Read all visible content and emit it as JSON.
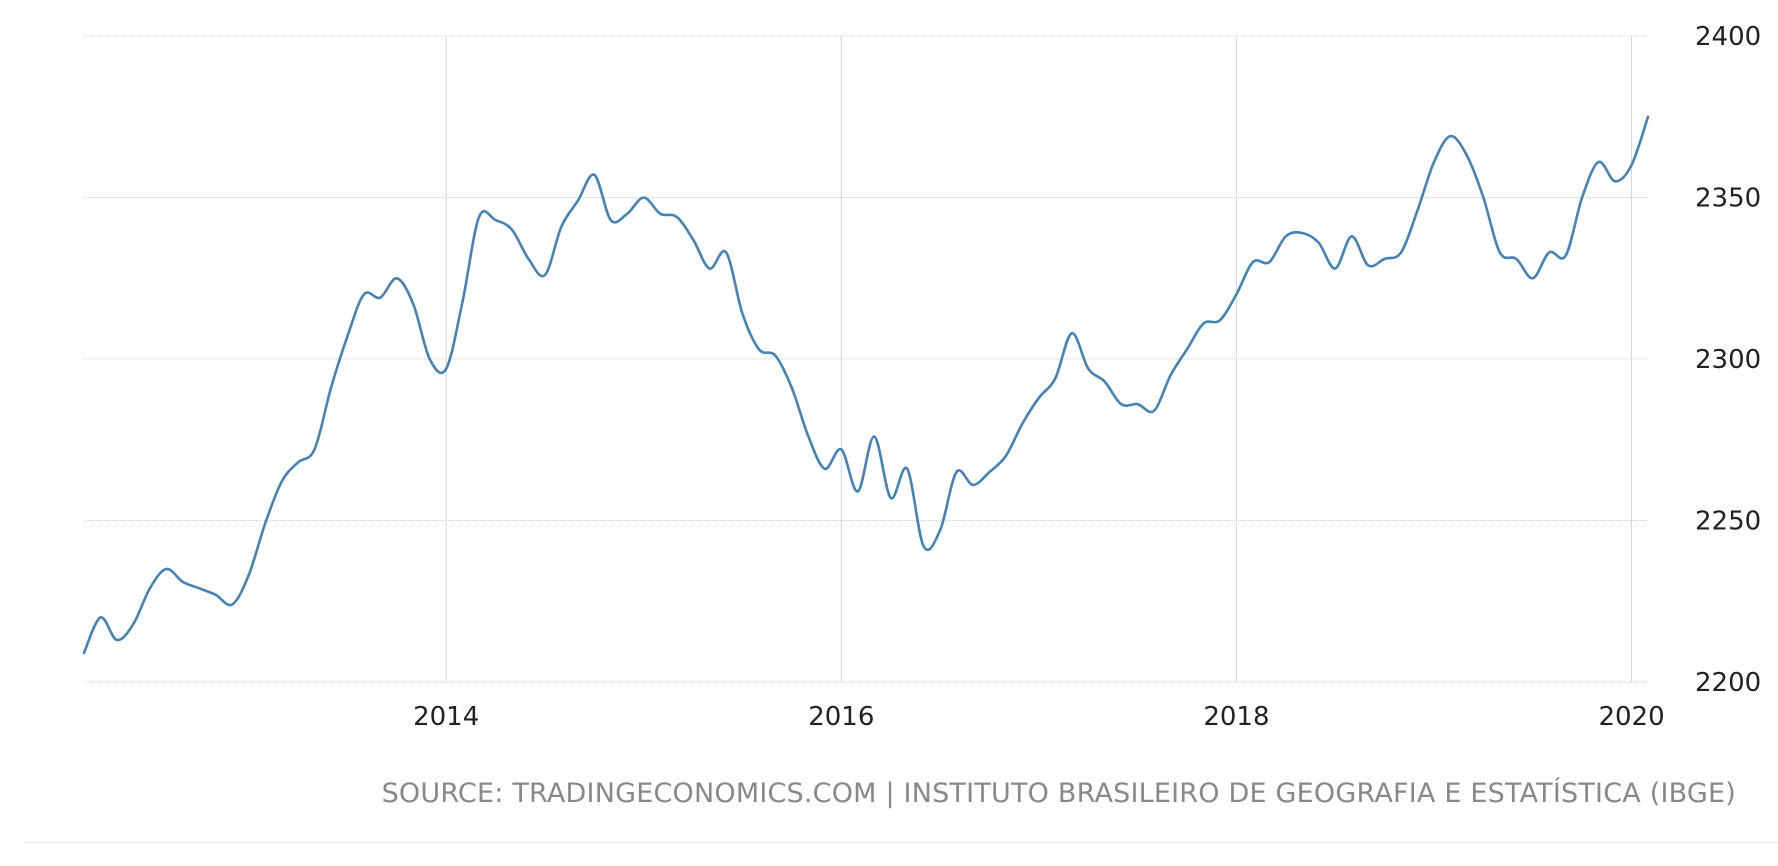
{
  "source": "SOURCE: TRADINGECONOMICS.COM | INSTITUTO BRASILEIRO DE GEOGRAFIA E ESTATÍSTICA (IBGE)",
  "colors": {
    "line": "#4682b4",
    "grid": "#d0d0d0",
    "text": "#222222",
    "source": "#888888"
  },
  "chart_data": {
    "type": "line",
    "title": "",
    "xlabel": "",
    "ylabel": "",
    "xlim": [
      "2012-03",
      "2020-02"
    ],
    "ylim": [
      2200,
      2400
    ],
    "grid": true,
    "legend": "none",
    "y_ticks": [
      "2200",
      "2250",
      "2300",
      "2350",
      "2400"
    ],
    "x_ticks": [
      {
        "label": "2014",
        "date": "2014-01"
      },
      {
        "label": "2016",
        "date": "2016-01"
      },
      {
        "label": "2018",
        "date": "2018-01"
      },
      {
        "label": "2020",
        "date": "2020-01"
      }
    ],
    "series": [
      {
        "x": [
          "2012-03",
          "2012-04",
          "2012-05",
          "2012-06",
          "2012-07",
          "2012-08",
          "2012-09",
          "2012-10",
          "2012-11",
          "2012-12",
          "2013-01",
          "2013-02",
          "2013-03",
          "2013-04",
          "2013-05",
          "2013-06",
          "2013-07",
          "2013-08",
          "2013-09",
          "2013-10",
          "2013-11",
          "2013-12",
          "2014-01",
          "2014-02",
          "2014-03",
          "2014-04",
          "2014-05",
          "2014-06",
          "2014-07",
          "2014-08",
          "2014-09",
          "2014-10",
          "2014-11",
          "2014-12",
          "2015-01",
          "2015-02",
          "2015-03",
          "2015-04",
          "2015-05",
          "2015-06",
          "2015-07",
          "2015-08",
          "2015-09",
          "2015-10",
          "2015-11",
          "2015-12",
          "2016-01",
          "2016-02",
          "2016-03",
          "2016-04",
          "2016-05",
          "2016-06",
          "2016-07",
          "2016-08",
          "2016-09",
          "2016-10",
          "2016-11",
          "2016-12",
          "2017-01",
          "2017-02",
          "2017-03",
          "2017-04",
          "2017-05",
          "2017-06",
          "2017-07",
          "2017-08",
          "2017-09",
          "2017-10",
          "2017-11",
          "2017-12",
          "2018-01",
          "2018-02",
          "2018-03",
          "2018-04",
          "2018-05",
          "2018-06",
          "2018-07",
          "2018-08",
          "2018-09",
          "2018-10",
          "2018-11",
          "2018-12",
          "2019-01",
          "2019-02",
          "2019-03",
          "2019-04",
          "2019-05",
          "2019-06",
          "2019-07",
          "2019-08",
          "2019-09",
          "2019-10",
          "2019-11",
          "2019-12",
          "2020-01",
          "2020-02"
        ],
        "values": [
          2209,
          2220,
          2213,
          2218,
          2229,
          2235,
          2231,
          2229,
          2227,
          2224,
          2233,
          2249,
          2262,
          2268,
          2272,
          2291,
          2307,
          2320,
          2319,
          2325,
          2317,
          2300,
          2297,
          2318,
          2344,
          2343,
          2340,
          2331,
          2326,
          2341,
          2349,
          2357,
          2343,
          2345,
          2350,
          2345,
          2344,
          2337,
          2328,
          2333,
          2314,
          2303,
          2301,
          2291,
          2276,
          2266,
          2272,
          2259,
          2276,
          2257,
          2266,
          2242,
          2247,
          2265,
          2261,
          2265,
          2270,
          2280,
          2288,
          2294,
          2308,
          2297,
          2293,
          2286,
          2286,
          2284,
          2295,
          2303,
          2311,
          2312,
          2320,
          2330,
          2330,
          2338,
          2339,
          2336,
          2328,
          2338,
          2329,
          2331,
          2333,
          2346,
          2361,
          2369,
          2363,
          2350,
          2333,
          2331,
          2325,
          2333,
          2332,
          2350,
          2361,
          2355,
          2360,
          2375
        ]
      }
    ]
  }
}
